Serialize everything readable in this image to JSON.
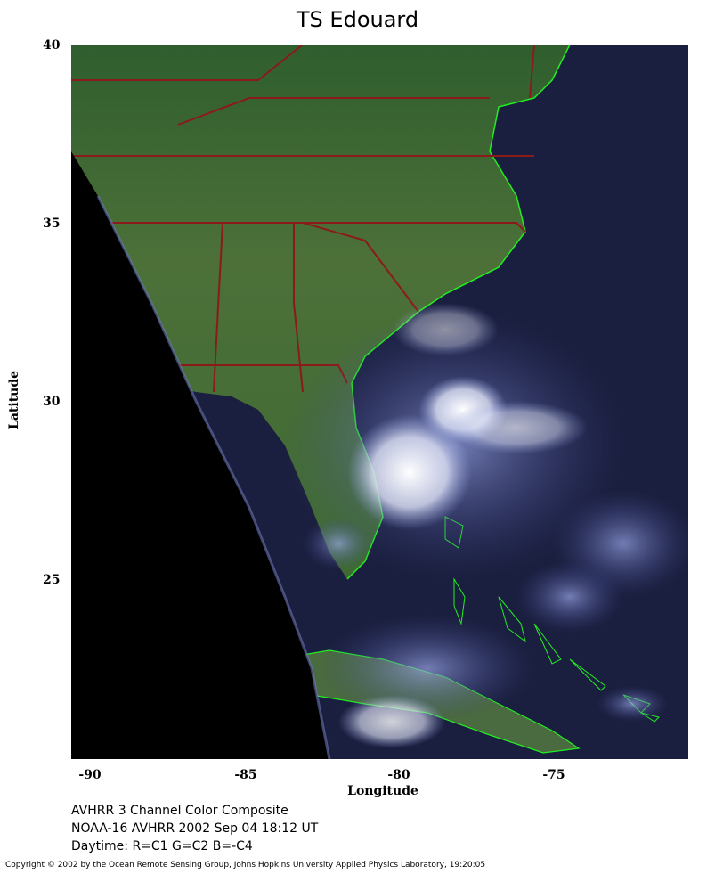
{
  "title": "TS Edouard",
  "axes": {
    "ylabel": "Latitude",
    "xlabel": "Longitude",
    "yticks": [
      "40",
      "35",
      "30",
      "25"
    ],
    "xticks": [
      "-90",
      "-85",
      "-80",
      "-75"
    ]
  },
  "info": {
    "line1": "AVHRR 3 Channel Color Composite",
    "line2": "NOAA-16 AVHRR 2002 Sep 04 18:12 UT",
    "line3": "Daytime: R=C1 G=C2 B=-C4"
  },
  "copyright": "Copyright © 2002 by the Ocean Remote Sensing Group, Johns Hopkins University Applied Physics Laboratory, 19:20:05",
  "colors": {
    "ocean": "#1b1f3f",
    "land": "#3f6a36",
    "coast": "#22ee22",
    "border": "#8b1a1a",
    "cloud": "#e8e8f8",
    "nodata": "#000000"
  },
  "map_extent": {
    "lon": [
      -90.5,
      -71
    ],
    "lat": [
      20,
      40
    ]
  }
}
